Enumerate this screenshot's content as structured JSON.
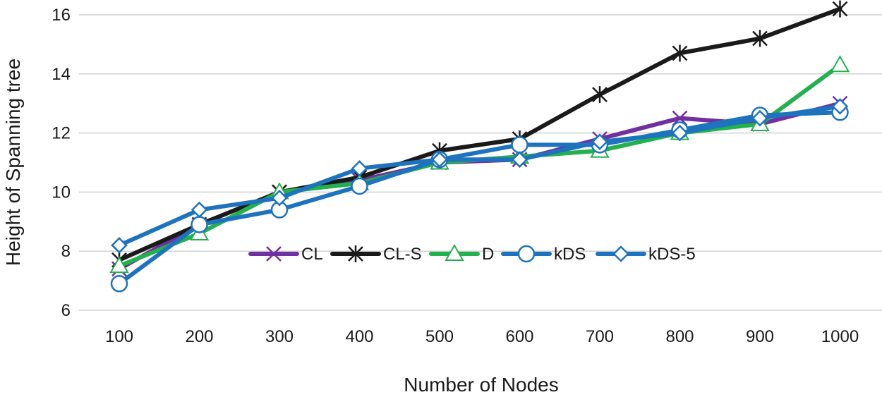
{
  "chart_data": {
    "type": "line",
    "title": "",
    "xlabel": "Number of Nodes",
    "ylabel": "Height of Spanning tree",
    "categories": [
      "100",
      "200",
      "300",
      "400",
      "500",
      "600",
      "700",
      "800",
      "900",
      "1000"
    ],
    "ylim": [
      6,
      16
    ],
    "yticks": [
      6,
      8,
      10,
      12,
      14,
      16
    ],
    "grid": true,
    "legend_position": "center",
    "series": [
      {
        "name": "CL",
        "color": "#7030a0",
        "marker": "x",
        "values": [
          7.4,
          8.9,
          10.0,
          10.4,
          11.0,
          11.1,
          11.8,
          12.5,
          12.3,
          13.0
        ]
      },
      {
        "name": "CL-S",
        "color": "#1a1a1a",
        "marker": "asterisk",
        "values": [
          7.7,
          8.9,
          10.0,
          10.5,
          11.4,
          11.8,
          13.3,
          14.7,
          15.2,
          16.2
        ]
      },
      {
        "name": "D",
        "color": "#22b14c",
        "marker": "triangle",
        "values": [
          7.5,
          8.6,
          10.0,
          10.3,
          11.0,
          11.2,
          11.4,
          12.0,
          12.3,
          14.3
        ]
      },
      {
        "name": "kDS",
        "color": "#1e73be",
        "marker": "circle",
        "values": [
          6.9,
          8.9,
          9.4,
          10.2,
          11.1,
          11.6,
          11.6,
          12.1,
          12.6,
          12.7
        ]
      },
      {
        "name": "kDS-5",
        "color": "#1e73be",
        "marker": "diamond",
        "values": [
          8.2,
          9.4,
          9.8,
          10.8,
          11.1,
          11.1,
          11.7,
          12.0,
          12.5,
          12.9
        ]
      }
    ]
  }
}
